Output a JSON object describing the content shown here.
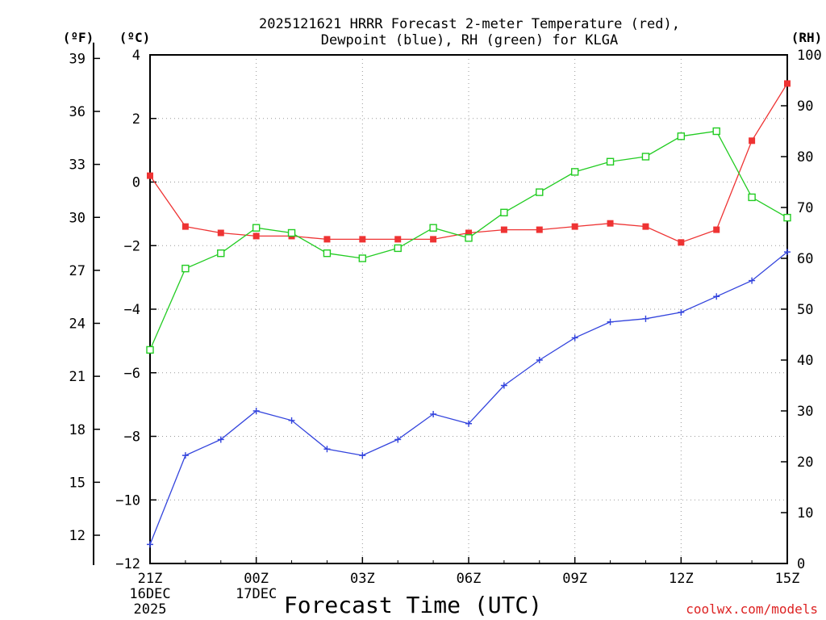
{
  "chart_data": {
    "type": "line",
    "title_line1": "2025121621 HRRR Forecast 2-meter Temperature (red),",
    "title_line2": "Dewpoint (blue), RH (green) for KLGA",
    "xlabel": "Forecast Time (UTC)",
    "credit": "coolwx.com/models",
    "axis_units": {
      "fahrenheit": "(ºF)",
      "celsius": "(ºC)",
      "rh": "(RH)"
    },
    "x_count": 19,
    "x_ticks": [
      {
        "i": 0,
        "label": "21Z",
        "sub1": "16DEC",
        "sub2": "2025"
      },
      {
        "i": 3,
        "label": "00Z",
        "sub1": "17DEC",
        "sub2": ""
      },
      {
        "i": 6,
        "label": "03Z",
        "sub1": "",
        "sub2": ""
      },
      {
        "i": 9,
        "label": "06Z",
        "sub1": "",
        "sub2": ""
      },
      {
        "i": 12,
        "label": "09Z",
        "sub1": "",
        "sub2": ""
      },
      {
        "i": 15,
        "label": "12Z",
        "sub1": "",
        "sub2": ""
      },
      {
        "i": 18,
        "label": "15Z",
        "sub1": "",
        "sub2": ""
      }
    ],
    "celsius_range": [
      -12,
      4
    ],
    "celsius_ticks": [
      "4",
      "2",
      "0",
      "−2",
      "−4",
      "−6",
      "−8",
      "−10",
      "−12"
    ],
    "fahrenheit_ticks": [
      "39",
      "36",
      "33",
      "30",
      "27",
      "24",
      "21",
      "18",
      "15",
      "12"
    ],
    "rh_range": [
      0,
      100
    ],
    "rh_ticks": [
      "100",
      "90",
      "80",
      "70",
      "60",
      "50",
      "40",
      "30",
      "20",
      "10",
      "0"
    ],
    "series": [
      {
        "name": "Temperature",
        "unit": "C",
        "color": "#ee3333",
        "marker": "filled-square",
        "values": [
          0.2,
          -1.4,
          -1.6,
          -1.7,
          -1.7,
          -1.8,
          -1.8,
          -1.8,
          -1.8,
          -1.6,
          -1.5,
          -1.5,
          -1.4,
          -1.3,
          -1.4,
          -1.9,
          -1.5,
          1.3,
          3.1
        ]
      },
      {
        "name": "Dewpoint",
        "unit": "C",
        "color": "#3344dd",
        "marker": "plus",
        "values": [
          -11.4,
          -8.6,
          -8.1,
          -7.2,
          -7.5,
          -8.4,
          -8.6,
          -8.1,
          -7.3,
          -7.6,
          -6.4,
          -5.6,
          -4.9,
          -4.4,
          -4.3,
          -4.1,
          -3.6,
          -3.1,
          -2.2
        ]
      },
      {
        "name": "RH",
        "unit": "%",
        "color": "#22cc22",
        "marker": "open-square",
        "values": [
          42,
          58,
          61,
          66,
          65,
          61,
          60,
          62,
          66,
          64,
          69,
          73,
          77,
          79,
          80,
          84,
          85,
          72,
          68
        ]
      }
    ]
  }
}
